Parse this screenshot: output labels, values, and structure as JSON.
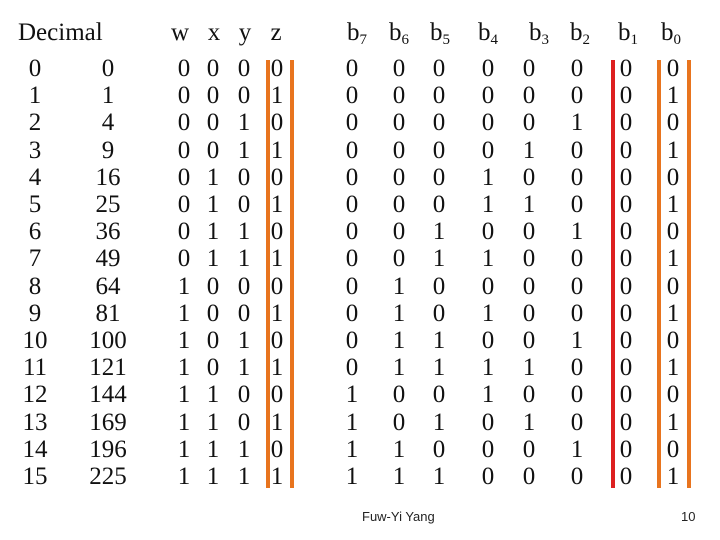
{
  "header": {
    "decimal": "Decimal",
    "inputs": [
      "w",
      "x",
      "y",
      "z"
    ],
    "outputs": [
      {
        "base": "b",
        "sub": "7"
      },
      {
        "base": "b",
        "sub": "6"
      },
      {
        "base": "b",
        "sub": "5"
      },
      {
        "base": "b",
        "sub": "4"
      },
      {
        "base": "b",
        "sub": "3"
      },
      {
        "base": "b",
        "sub": "2"
      },
      {
        "base": "b",
        "sub": "1"
      },
      {
        "base": "b",
        "sub": "0"
      }
    ]
  },
  "rows": [
    [
      "0",
      "0",
      "0",
      "0",
      "0",
      "0",
      "0",
      "0",
      "0",
      "0",
      "0",
      "0",
      "0",
      "0"
    ],
    [
      "1",
      "1",
      "0",
      "0",
      "0",
      "1",
      "0",
      "0",
      "0",
      "0",
      "0",
      "0",
      "0",
      "1"
    ],
    [
      "2",
      "4",
      "0",
      "0",
      "1",
      "0",
      "0",
      "0",
      "0",
      "0",
      "0",
      "1",
      "0",
      "0"
    ],
    [
      "3",
      "9",
      "0",
      "0",
      "1",
      "1",
      "0",
      "0",
      "0",
      "0",
      "1",
      "0",
      "0",
      "1"
    ],
    [
      "4",
      "16",
      "0",
      "1",
      "0",
      "0",
      "0",
      "0",
      "0",
      "1",
      "0",
      "0",
      "0",
      "0"
    ],
    [
      "5",
      "25",
      "0",
      "1",
      "0",
      "1",
      "0",
      "0",
      "0",
      "1",
      "1",
      "0",
      "0",
      "1"
    ],
    [
      "6",
      "36",
      "0",
      "1",
      "1",
      "0",
      "0",
      "0",
      "1",
      "0",
      "0",
      "1",
      "0",
      "0"
    ],
    [
      "7",
      "49",
      "0",
      "1",
      "1",
      "1",
      "0",
      "0",
      "1",
      "1",
      "0",
      "0",
      "0",
      "1"
    ],
    [
      "8",
      "64",
      "1",
      "0",
      "0",
      "0",
      "0",
      "1",
      "0",
      "0",
      "0",
      "0",
      "0",
      "0"
    ],
    [
      "9",
      "81",
      "1",
      "0",
      "0",
      "1",
      "0",
      "1",
      "0",
      "1",
      "0",
      "0",
      "0",
      "1"
    ],
    [
      "10",
      "100",
      "1",
      "0",
      "1",
      "0",
      "0",
      "1",
      "1",
      "0",
      "0",
      "1",
      "0",
      "0"
    ],
    [
      "11",
      "121",
      "1",
      "0",
      "1",
      "1",
      "0",
      "1",
      "1",
      "1",
      "1",
      "0",
      "0",
      "1"
    ],
    [
      "12",
      "144",
      "1",
      "1",
      "0",
      "0",
      "1",
      "0",
      "0",
      "1",
      "0",
      "0",
      "0",
      "0"
    ],
    [
      "13",
      "169",
      "1",
      "1",
      "0",
      "1",
      "1",
      "0",
      "1",
      "0",
      "1",
      "0",
      "0",
      "1"
    ],
    [
      "14",
      "196",
      "1",
      "1",
      "1",
      "0",
      "1",
      "1",
      "0",
      "0",
      "0",
      "1",
      "0",
      "0"
    ],
    [
      "15",
      "225",
      "1",
      "1",
      "1",
      "1",
      "1",
      "1",
      "1",
      "0",
      "0",
      "0",
      "0",
      "1"
    ]
  ],
  "highlight_colors": {
    "orange": "#e8741e",
    "red": "#dd2020"
  },
  "footer": {
    "author": "Fuw-Yi Yang",
    "page_number": "10"
  }
}
